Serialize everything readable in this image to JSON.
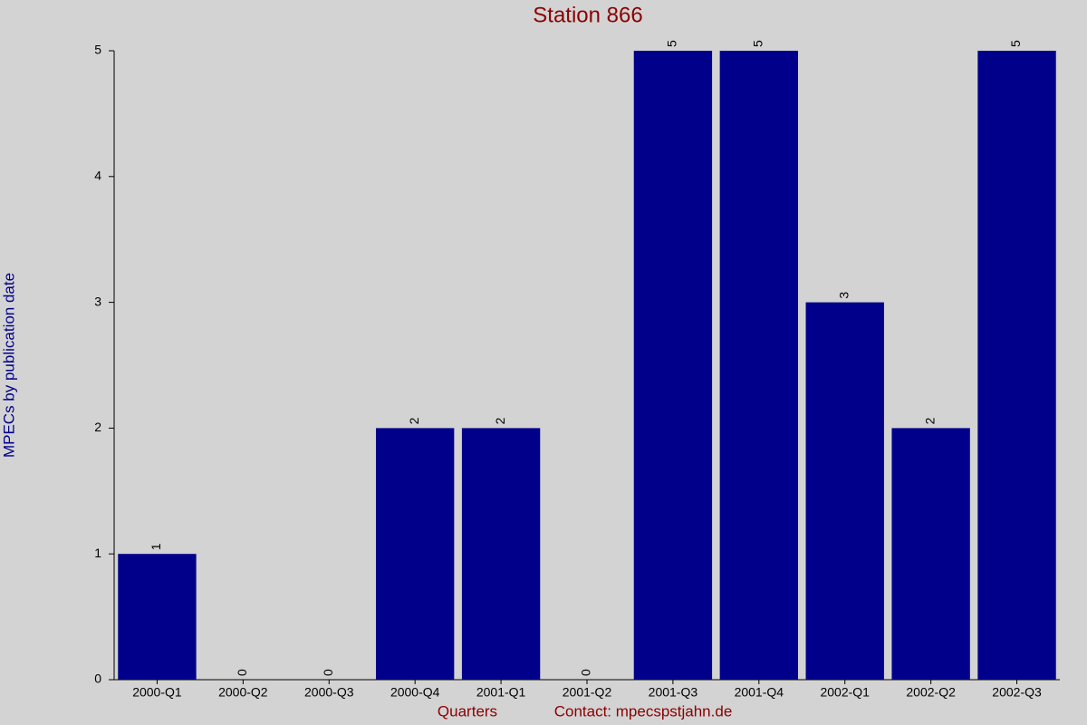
{
  "chart_data": {
    "type": "bar",
    "title": "Station 866",
    "y_label": "MPECs by publication date",
    "x_label": "Quarters",
    "contact": "Contact: mpecspstjahn.de",
    "categories": [
      "2000-Q1",
      "2000-Q2",
      "2000-Q3",
      "2000-Q4",
      "2001-Q1",
      "2001-Q2",
      "2001-Q3",
      "2001-Q4",
      "2002-Q1",
      "2002-Q2",
      "2002-Q3"
    ],
    "values": [
      1,
      0,
      0,
      2,
      2,
      0,
      5,
      5,
      3,
      2,
      5
    ],
    "color": "#00008b",
    "ylim": [
      0,
      5
    ],
    "yticks": [
      0,
      1,
      2,
      3,
      4,
      5
    ],
    "grid": false
  }
}
